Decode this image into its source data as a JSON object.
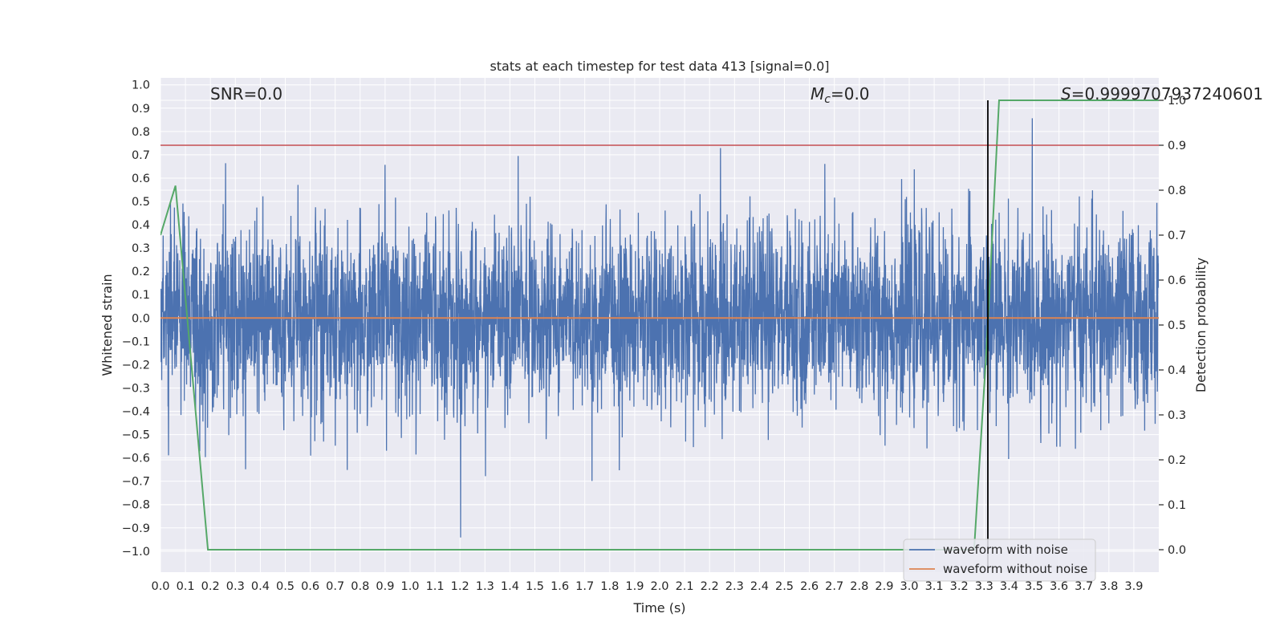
{
  "chart_data": {
    "type": "line",
    "title": "stats at each timestep for test data 413 [signal=0.0]",
    "xlabel": "Time (s)",
    "ylabel": "Whitened strain",
    "y2label": "Detection probability",
    "xlim": [
      0.0,
      4.0
    ],
    "ylim": [
      -1.09,
      1.03
    ],
    "y2lim": [
      -0.05,
      1.05
    ],
    "x_ticks": [
      "0.0",
      "0.1",
      "0.2",
      "0.3",
      "0.4",
      "0.5",
      "0.6",
      "0.7",
      "0.8",
      "0.9",
      "1.0",
      "1.1",
      "1.2",
      "1.3",
      "1.4",
      "1.5",
      "1.6",
      "1.7",
      "1.8",
      "1.9",
      "2.0",
      "2.1",
      "2.2",
      "2.3",
      "2.4",
      "2.5",
      "2.6",
      "2.7",
      "2.8",
      "2.9",
      "3.0",
      "3.1",
      "3.2",
      "3.3",
      "3.4",
      "3.5",
      "3.6",
      "3.7",
      "3.8",
      "3.9"
    ],
    "y_ticks": [
      "1.0",
      "0.9",
      "0.8",
      "0.7",
      "0.6",
      "0.5",
      "0.4",
      "0.3",
      "0.2",
      "0.1",
      "0.0",
      "−0.1",
      "−0.2",
      "−0.3",
      "−0.4",
      "−0.5",
      "−0.6",
      "−0.7",
      "−0.8",
      "−0.9",
      "−1.0"
    ],
    "y2_ticks": [
      "1.0",
      "0.9",
      "0.8",
      "0.7",
      "0.6",
      "0.5",
      "0.4",
      "0.3",
      "0.2",
      "0.1",
      "0.0"
    ],
    "annotations": {
      "snr": "SNR=0.0",
      "mc_symbol": "M",
      "mc_sub": "c",
      "mc_value": "=0.0",
      "s_symbol": "S",
      "s_value": "=0.9999707937240601"
    },
    "legend": {
      "placement": "lower-right",
      "entries": [
        "waveform with noise",
        "waveform without noise"
      ]
    },
    "colors": {
      "noise": "#4c72b0",
      "clean": "#dd8452",
      "probability": "#55a868",
      "threshold": "#c44e52",
      "marker": "#000000",
      "background": "#eaeaf2",
      "grid": "#ffffff"
    },
    "series": [
      {
        "name": "waveform with noise",
        "kind": "noise",
        "x_range": [
          0.0,
          4.0
        ],
        "std": 0.2,
        "peak_max": 0.92,
        "peak_min": -1.0
      },
      {
        "name": "waveform without noise",
        "kind": "constant",
        "value": 0.0
      },
      {
        "name": "detection probability",
        "axis": "right",
        "x": [
          0.0,
          0.06,
          0.19,
          3.26,
          3.31,
          3.36,
          4.0
        ],
        "y": [
          0.7,
          0.81,
          0.0,
          0.0,
          0.45,
          1.0,
          1.0
        ]
      },
      {
        "name": "threshold",
        "axis": "right",
        "kind": "hline",
        "value": 0.9
      },
      {
        "name": "detection time",
        "kind": "vline",
        "x": 3.315
      }
    ]
  }
}
